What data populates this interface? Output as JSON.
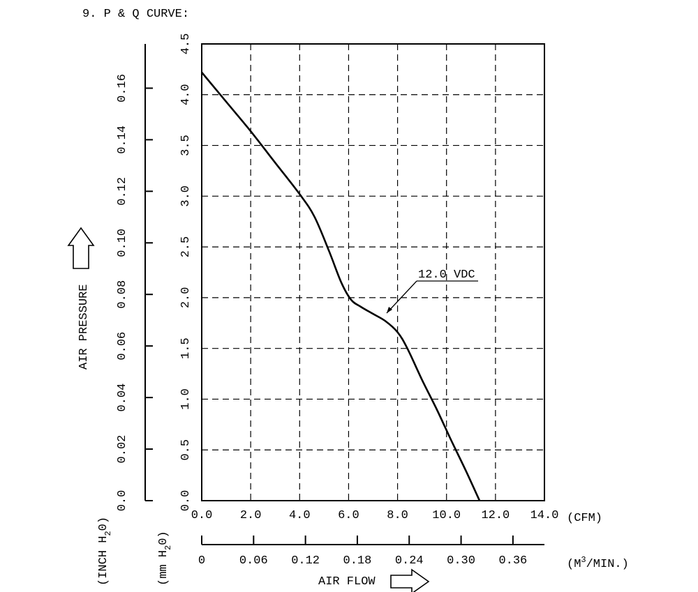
{
  "chart_data": {
    "type": "line",
    "title": "9. P & Q CURVE:",
    "ylabel": "AIR PRESSURE",
    "xlabel": "AIR FLOW",
    "x_unit_cfm": "(CFM)",
    "x_unit_m3": "(M³/MIN.)",
    "x_unit_m3_parts": {
      "prefix": "(M",
      "sup": "3",
      "suffix": "/MIN.)"
    },
    "y_unit_mm": "(mm H₂O)",
    "y_unit_mm_parts": {
      "prefix": "(mm H",
      "sub": "2",
      "suffix": "0)"
    },
    "y_unit_inch": "(INCH H₂O)",
    "y_unit_inch_parts": {
      "prefix": "(INCH H",
      "sub": "2",
      "suffix": "0)"
    },
    "xlim": [
      0,
      14
    ],
    "ylim": [
      0,
      4.5
    ],
    "x_ticks_cfm": [
      "0.0",
      "2.0",
      "4.0",
      "6.0",
      "8.0",
      "10.0",
      "12.0",
      "14.0"
    ],
    "x_tick_values_cfm": [
      0,
      2,
      4,
      6,
      8,
      10,
      12,
      14
    ],
    "x_ticks_m3": [
      "0",
      "0.06",
      "0.12",
      "0.18",
      "0.24",
      "0.30",
      "0.36"
    ],
    "x_tick_values_m3": [
      0,
      0.06,
      0.12,
      0.18,
      0.24,
      0.3,
      0.36
    ],
    "y_ticks_mm": [
      "0.0",
      "0.5",
      "1.0",
      "1.5",
      "2.0",
      "2.5",
      "3.0",
      "3.5",
      "4.0",
      "4.5"
    ],
    "y_tick_values_mm": [
      0,
      0.5,
      1,
      1.5,
      2,
      2.5,
      3,
      3.5,
      4,
      4.5
    ],
    "y_ticks_inch": [
      "0.0",
      "0.02",
      "0.04",
      "0.06",
      "0.08",
      "0.10",
      "0.12",
      "0.14",
      "0.16"
    ],
    "y_tick_values_inch": [
      0,
      0.02,
      0.04,
      0.06,
      0.08,
      0.1,
      0.12,
      0.14,
      0.16
    ],
    "grid": true,
    "series": [
      {
        "name": "12.0 VDC",
        "x": [
          0,
          1.0,
          2.0,
          3.0,
          4.0,
          4.6,
          5.2,
          5.7,
          6.1,
          6.5,
          7.0,
          7.5,
          8.0,
          8.4,
          9.0,
          9.6,
          10.2,
          10.8,
          11.35
        ],
        "y": [
          4.22,
          3.93,
          3.64,
          3.33,
          3.02,
          2.8,
          2.46,
          2.15,
          1.98,
          1.91,
          1.84,
          1.77,
          1.66,
          1.5,
          1.19,
          0.9,
          0.59,
          0.29,
          0.0
        ]
      }
    ]
  }
}
